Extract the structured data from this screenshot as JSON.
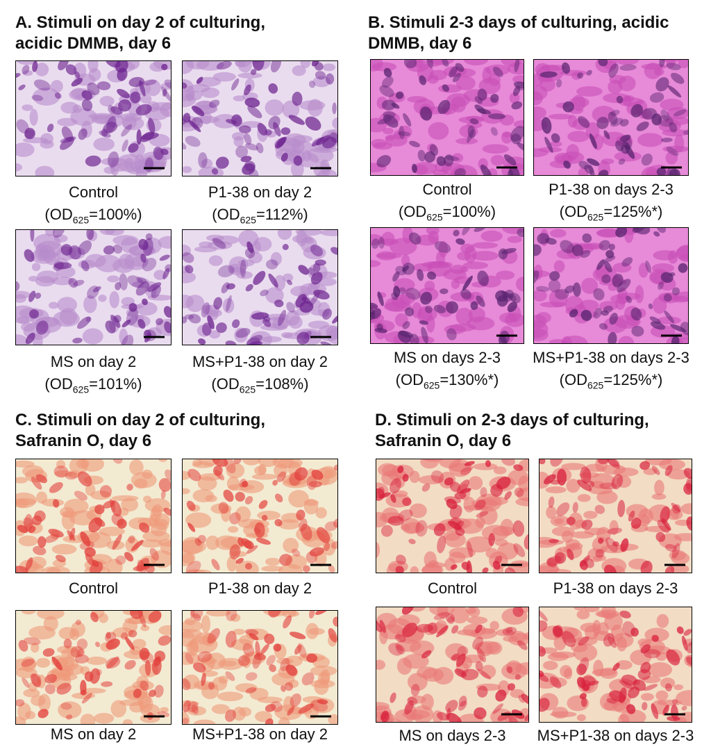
{
  "panels": [
    {
      "title_lines": [
        "A. Stimuli on day 2 of culturing,",
        "acidic DMMB, day 6"
      ],
      "images": [
        {
          "caption": "Control",
          "od": {
            "prefix": "(OD",
            "subscript": "625",
            "suffix": "=100%)"
          }
        },
        {
          "caption": "P1-38 on day 2",
          "od": {
            "prefix": "(OD",
            "subscript": "625",
            "suffix": "=112%)"
          }
        },
        {
          "caption": "MS on day 2",
          "od": {
            "prefix": "(OD",
            "subscript": "625",
            "suffix": "=101%)"
          }
        },
        {
          "caption": "MS+P1-38 on day 2",
          "od": {
            "prefix": "(OD",
            "subscript": "625",
            "suffix": "=108%)"
          }
        }
      ]
    },
    {
      "title_lines": [
        "B. Stimuli 2-3 days of culturing, acidic",
        "DMMB, day 6"
      ],
      "images": [
        {
          "caption": "Control",
          "od": {
            "prefix": "(OD",
            "subscript": "625",
            "suffix": "=100%)"
          }
        },
        {
          "caption": "P1-38 on days 2-3",
          "od": {
            "prefix": "(OD",
            "subscript": "625",
            "suffix": "=125%*)"
          }
        },
        {
          "caption": "MS on days 2-3",
          "od": {
            "prefix": "(OD",
            "subscript": "625",
            "suffix": "=130%*)"
          }
        },
        {
          "caption": "MS+P1-38 on days 2-3",
          "od": {
            "prefix": "(OD",
            "subscript": "625",
            "suffix": "=125%*)"
          }
        }
      ]
    },
    {
      "title_lines": [
        "C. Stimuli on day 2 of culturing,",
        "Safranin O, day 6"
      ],
      "images": [
        {
          "caption": "Control"
        },
        {
          "caption": "P1-38 on day 2"
        },
        {
          "caption": "MS on day 2"
        },
        {
          "caption": "MS+P1-38 on day 2"
        }
      ]
    },
    {
      "title_lines": [
        "D. Stimuli on 2-3 days of culturing,",
        "Safranin O, day 6"
      ],
      "images": [
        {
          "caption": "Control"
        },
        {
          "caption": "P1-38 on days 2-3"
        },
        {
          "caption": "MS on days 2-3"
        },
        {
          "caption": "MS+P1-38 on days 2-3"
        }
      ]
    }
  ]
}
